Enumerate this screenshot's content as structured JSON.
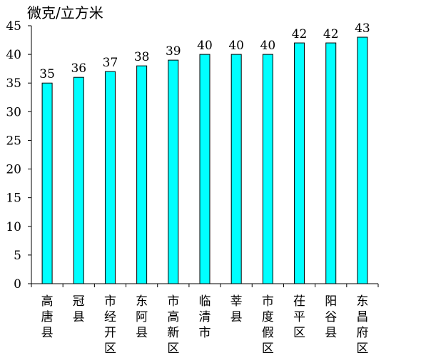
{
  "chart_data": {
    "type": "bar",
    "ylabel": "微克/立方米",
    "categories": [
      "高唐县",
      "冠县",
      "市经开区",
      "东阿县",
      "市高新区",
      "临清市",
      "莘县",
      "市度假区",
      "茌平区",
      "阳谷县",
      "东昌府区"
    ],
    "values": [
      35,
      36,
      37,
      38,
      39,
      40,
      40,
      40,
      42,
      42,
      43
    ],
    "ylim": [
      0,
      45
    ],
    "yticks": [
      0,
      5,
      10,
      15,
      20,
      25,
      30,
      35,
      40,
      45
    ],
    "grid": false,
    "legend": "none",
    "bar_color": "#00FFFF",
    "bar_stroke": "#000000"
  }
}
